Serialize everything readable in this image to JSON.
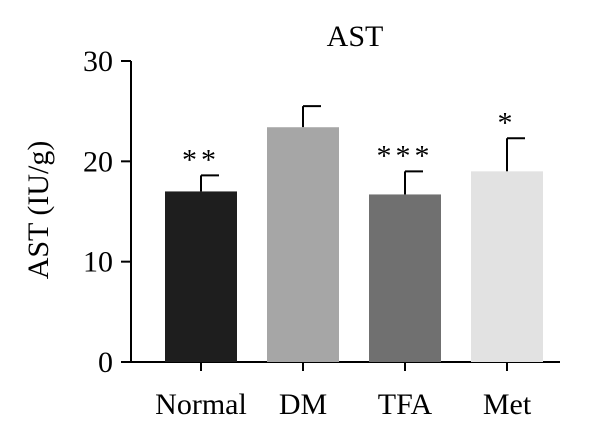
{
  "chart_data": {
    "type": "bar",
    "title": "AST",
    "xlabel": "",
    "ylabel": "AST (IU/g)",
    "ylim": [
      0,
      30
    ],
    "yticks": [
      0,
      10,
      20,
      30
    ],
    "grid": false,
    "categories": [
      "Normal",
      "DM",
      "TFA",
      "Met"
    ],
    "values": [
      17.0,
      23.4,
      16.7,
      19.0
    ],
    "errors": [
      1.6,
      2.1,
      2.3,
      3.3
    ],
    "annotations": [
      "**",
      "",
      "***",
      "*"
    ],
    "colors": [
      "#1e1e1e",
      "#a6a6a6",
      "#707070",
      "#e2e2e2"
    ]
  }
}
